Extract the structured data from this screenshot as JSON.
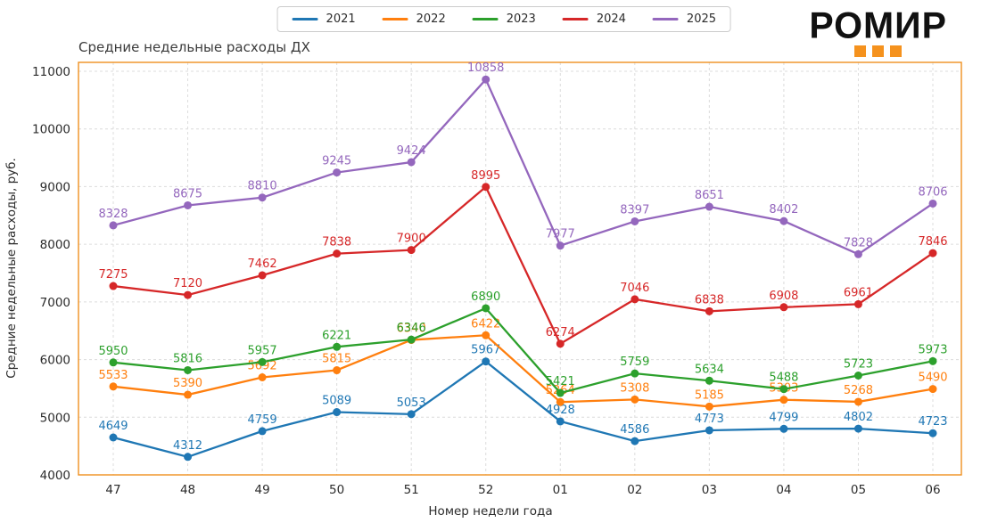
{
  "logo": {
    "text": "РОМИР",
    "square_color": "#F5921E"
  },
  "colors": {
    "plot_border": "#F0901E",
    "grid": "#dcdcdc",
    "tick_text": "#2b2b2b",
    "title_text": "#3b3b3b"
  },
  "chart_data": {
    "type": "line",
    "title": "Средние недельные расходы ДХ",
    "xlabel": "Номер недели года",
    "ylabel": "Средние недельные расходы, руб.",
    "categories": [
      "47",
      "48",
      "49",
      "50",
      "51",
      "52",
      "01",
      "02",
      "03",
      "04",
      "05",
      "06"
    ],
    "ylim": [
      4000,
      11000
    ],
    "yticks": [
      4000,
      5000,
      6000,
      7000,
      8000,
      9000,
      10000,
      11000
    ],
    "grid": true,
    "grid_style": "dashed",
    "legend_position": "top-center",
    "point_labels": true,
    "series": [
      {
        "name": "2021",
        "color": "#1f77b4",
        "values": [
          4649,
          4312,
          4759,
          5089,
          5053,
          5967,
          4928,
          4586,
          4773,
          4799,
          4802,
          4723
        ]
      },
      {
        "name": "2022",
        "color": "#ff7f0e",
        "values": [
          5533,
          5390,
          5692,
          5815,
          6340,
          6422,
          5264,
          5308,
          5185,
          5303,
          5268,
          5490
        ]
      },
      {
        "name": "2023",
        "color": "#2ca02c",
        "values": [
          5950,
          5816,
          5957,
          6221,
          6346,
          6890,
          5421,
          5759,
          5634,
          5488,
          5723,
          5973
        ]
      },
      {
        "name": "2024",
        "color": "#d62728",
        "values": [
          7275,
          7120,
          7462,
          7838,
          7900,
          8995,
          6274,
          7046,
          6838,
          6908,
          6961,
          7846
        ]
      },
      {
        "name": "2025",
        "color": "#9467bd",
        "values": [
          8328,
          8675,
          8810,
          9245,
          9424,
          10858,
          7977,
          8397,
          8651,
          8402,
          7828,
          8706
        ]
      }
    ]
  }
}
